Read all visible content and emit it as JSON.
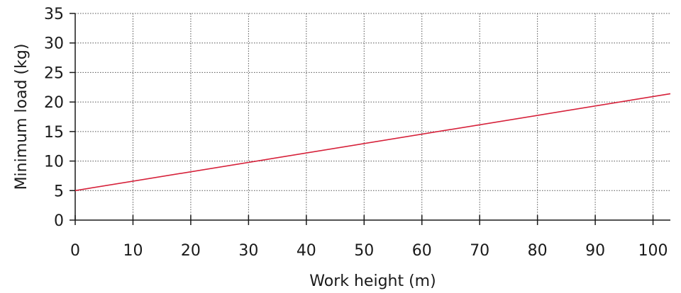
{
  "chart_data": {
    "type": "line",
    "title": "",
    "xlabel": "Work height (m)",
    "ylabel": "Minimum load (kg)",
    "xlim": [
      0,
      103
    ],
    "ylim": [
      0,
      35
    ],
    "x_ticks": [
      "0",
      "10",
      "20",
      "30",
      "40",
      "50",
      "60",
      "70",
      "80",
      "90",
      "100"
    ],
    "y_ticks": [
      "0",
      "5",
      "10",
      "15",
      "20",
      "25",
      "30",
      "35"
    ],
    "grid": true,
    "series": [
      {
        "color": "#d6213a",
        "x": [
          0,
          103
        ],
        "y": [
          5,
          21.4
        ]
      }
    ]
  }
}
